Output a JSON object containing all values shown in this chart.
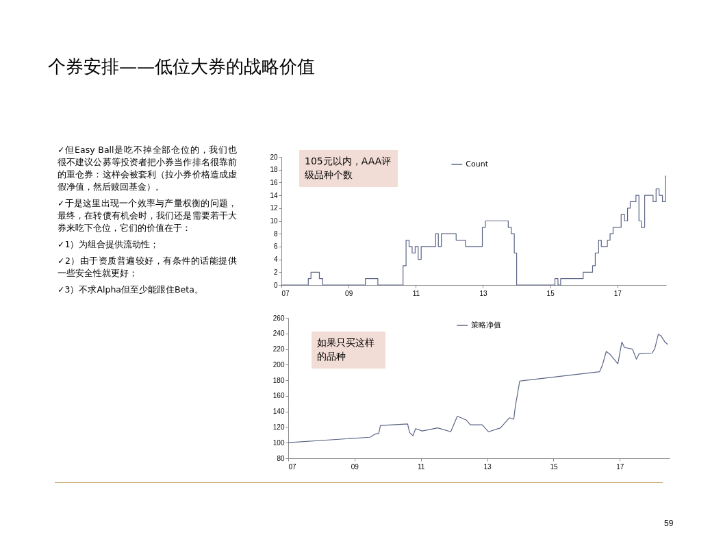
{
  "chart_data": [
    {
      "type": "other",
      "title": "个券安排——低位大券的战略价值",
      "annotations": [
        "✓但Easy Ball是吃不掉全部仓位的，我们也很不建议公募等投资者把小券当作排名很靠前的重仓券：这样会被套利（拉小券价格造成虚假净值，然后赎回基金）。",
        "✓于是这里出现一个效率与产量权衡的问题，最终，在转债有机会时，我们还是需要若干大券来吃下仓位，它们的价值在于：",
        "✓1）为组合提供流动性；",
        "✓2）由于资质普遍较好，有条件的话能提供一些安全性就更好；",
        "✓3）不求Alpha但至少能跟住Beta。",
        "59"
      ]
    },
    {
      "type": "step",
      "annotations": [
        "105元以内，AAA评级品种个数"
      ],
      "legend": "top",
      "x": [
        2007,
        2007.8,
        2007.88,
        2008.13,
        2008.23,
        2009.5,
        2009.87,
        2010.62,
        2010.71,
        2010.8,
        2010.89,
        2010.98,
        2011.07,
        2011.16,
        2011.59,
        2011.67,
        2011.76,
        2012.2,
        2012.48,
        2012.98,
        2013.07,
        2013.75,
        2013.84,
        2013.93,
        2014,
        2015.14,
        2015.23,
        2015.31,
        2015.98,
        2016.26,
        2016.34,
        2016.44,
        2016.52,
        2016.7,
        2016.78,
        2016.87,
        2017.11,
        2017.21,
        2017.3,
        2017.38,
        2017.55,
        2017.64,
        2017.71,
        2017.81,
        2018.06,
        2018.15,
        2018.24,
        2018.34,
        2018.43,
        2018.45
      ],
      "series": [
        {
          "name": "Count",
          "color": "#5b6586",
          "values": [
            0,
            1,
            2,
            1,
            0,
            1,
            0,
            3,
            7,
            6,
            5,
            6,
            4,
            6,
            8,
            6,
            8,
            7,
            6,
            9,
            10,
            9,
            8,
            5,
            0,
            1,
            0,
            1,
            2,
            3,
            5,
            7,
            6,
            7,
            8,
            9,
            11,
            10,
            12,
            13,
            14,
            10,
            9,
            14,
            13,
            15,
            14,
            13,
            17,
            17
          ]
        }
      ],
      "xlim": [
        2007,
        2018.45
      ],
      "xticks": [
        {
          "value": 2007,
          "label": "07"
        },
        {
          "value": 2009,
          "label": "09"
        },
        {
          "value": 2011,
          "label": "11"
        },
        {
          "value": 2013,
          "label": "13"
        },
        {
          "value": 2015,
          "label": "15"
        },
        {
          "value": 2017,
          "label": "17"
        }
      ],
      "ylim": [
        0,
        20
      ],
      "yticks": [
        0,
        2,
        4,
        6,
        8,
        10,
        12,
        14,
        16,
        18,
        20
      ]
    },
    {
      "type": "line",
      "annotations": [
        "如果只买这样的品种"
      ],
      "legend": "top",
      "x": [
        2007,
        2009.46,
        2009.62,
        2009.73,
        2009.78,
        2010.6,
        2010.66,
        2010.76,
        2010.84,
        2011.04,
        2011.51,
        2011.9,
        2012.1,
        2012.37,
        2012.49,
        2012.85,
        2013.04,
        2013.4,
        2013.67,
        2013.8,
        2013.85,
        2013.94,
        2013.98,
        2016.39,
        2016.47,
        2016.59,
        2016.71,
        2016.94,
        2017.06,
        2017.14,
        2017.38,
        2017.5,
        2017.58,
        2017.97,
        2018.05,
        2018.16,
        2018.24,
        2018.36,
        2018.44
      ],
      "series": [
        {
          "name": "策略净值",
          "color": "#5b6586",
          "values": [
            100,
            107,
            111,
            112,
            122,
            124,
            113,
            109,
            118,
            115,
            119,
            114,
            134,
            129,
            123,
            123,
            114,
            119,
            132,
            130,
            147,
            169,
            179,
            191,
            199,
            217,
            213,
            201,
            229,
            222,
            220,
            207,
            214,
            215,
            220,
            239,
            237,
            229,
            226
          ]
        }
      ],
      "xlim": [
        2007,
        2018.5
      ],
      "xticks": [
        {
          "value": 2007,
          "label": "07"
        },
        {
          "value": 2009,
          "label": "09"
        },
        {
          "value": 2011,
          "label": "11"
        },
        {
          "value": 2013,
          "label": "13"
        },
        {
          "value": 2015,
          "label": "15"
        },
        {
          "value": 2017,
          "label": "17"
        }
      ],
      "ylim": [
        80,
        260
      ],
      "yticks": [
        80,
        100,
        120,
        140,
        160,
        180,
        200,
        220,
        240,
        260
      ]
    }
  ]
}
